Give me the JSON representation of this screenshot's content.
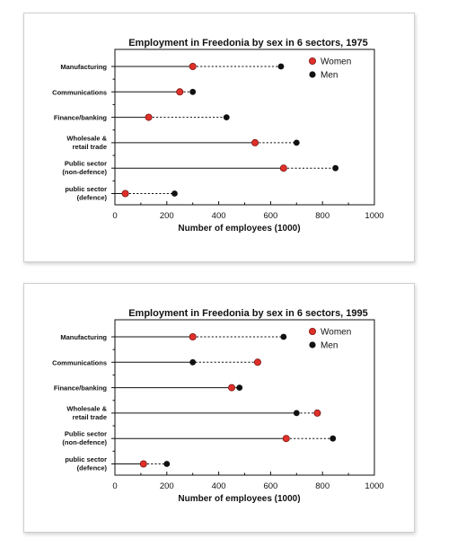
{
  "chart_data": [
    {
      "type": "dot-plot",
      "title": "Employment in Freedonia by sex in 6 sectors, 1975",
      "xlabel": "Number of employees (1000)",
      "ylabel": "",
      "xlim": [
        0,
        1000
      ],
      "xticks": [
        0,
        200,
        400,
        600,
        800,
        1000
      ],
      "categories": [
        "Manufacturing",
        "Communications",
        "Finance/banking",
        "Wholesale & retail trade",
        "Public sector (non-defence)",
        "public sector (defence)"
      ],
      "category_lines": [
        [
          "Manufacturing"
        ],
        [
          "Communications"
        ],
        [
          "Finance/banking"
        ],
        [
          "Wholesale &",
          "retail trade"
        ],
        [
          "Public sector",
          "(non-defence)"
        ],
        [
          "public sector",
          "(defence)"
        ]
      ],
      "series": [
        {
          "name": "Women",
          "color": "#e0302a",
          "values": [
            300,
            250,
            130,
            540,
            650,
            40
          ]
        },
        {
          "name": "Men",
          "color": "#111111",
          "values": [
            640,
            300,
            430,
            700,
            850,
            230
          ]
        }
      ],
      "legend_position": "top-right",
      "grid": false
    },
    {
      "type": "dot-plot",
      "title": "Employment in Freedonia by sex in 6 sectors, 1995",
      "xlabel": "Number of employees (1000)",
      "ylabel": "",
      "xlim": [
        0,
        1000
      ],
      "xticks": [
        0,
        200,
        400,
        600,
        800,
        1000
      ],
      "categories": [
        "Manufacturing",
        "Communications",
        "Finance/banking",
        "Wholesale & retail trade",
        "Public sector (non-defence)",
        "public sector (defence)"
      ],
      "category_lines": [
        [
          "Manufacturing"
        ],
        [
          "Communications"
        ],
        [
          "Finance/banking"
        ],
        [
          "Wholesale &",
          "retail trade"
        ],
        [
          "Public sector",
          "(non-defence)"
        ],
        [
          "public sector",
          "(defence)"
        ]
      ],
      "series": [
        {
          "name": "Women",
          "color": "#e0302a",
          "values": [
            300,
            550,
            450,
            780,
            660,
            110
          ]
        },
        {
          "name": "Men",
          "color": "#111111",
          "values": [
            650,
            300,
            480,
            700,
            840,
            200
          ]
        }
      ],
      "legend_position": "top-right",
      "grid": false
    }
  ]
}
